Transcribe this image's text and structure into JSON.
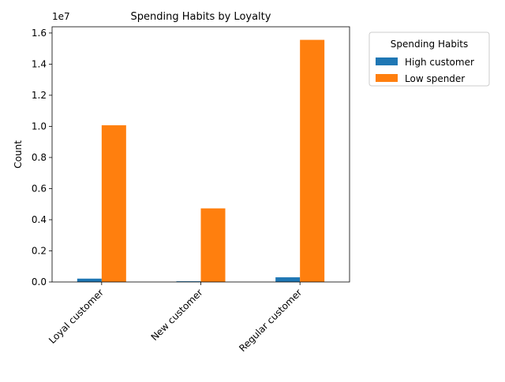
{
  "chart_data": {
    "type": "bar",
    "title": "Spending Habits by Loyalty",
    "xlabel": "",
    "ylabel": "Count",
    "scale_note": "1e7",
    "categories": [
      "Loyal customer",
      "New customer",
      "Regular customer"
    ],
    "series": [
      {
        "name": "High customer",
        "color": "#1f77b4",
        "values": [
          215000,
          45000,
          300000
        ]
      },
      {
        "name": "Low spender",
        "color": "#ff7f0e",
        "values": [
          10070000,
          4730000,
          15560000
        ]
      }
    ],
    "ylim": [
      0,
      16400000
    ],
    "yticks": [
      0,
      2000000,
      4000000,
      6000000,
      8000000,
      10000000,
      12000000,
      14000000,
      16000000
    ],
    "ytick_labels": [
      "0.0",
      "0.2",
      "0.4",
      "0.6",
      "0.8",
      "1.0",
      "1.2",
      "1.4",
      "1.6"
    ],
    "grid": false,
    "legend": {
      "title": "Spending Habits",
      "placement": "outside-upper-right"
    }
  }
}
